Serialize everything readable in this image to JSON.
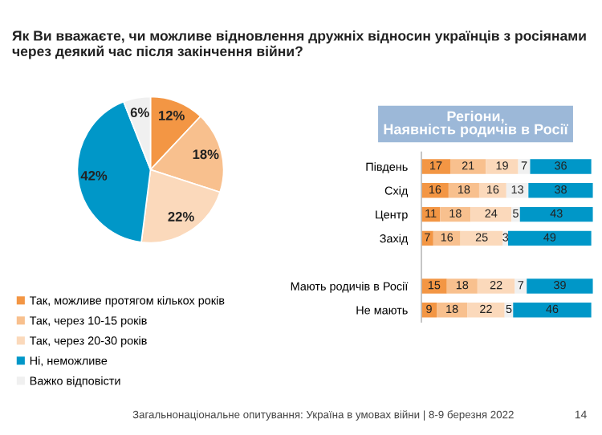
{
  "chart_data": [
    {
      "type": "pie",
      "title": "Як Ви вважаєте, чи можливе відновлення дружніх відносин українців з росіянами через деякий час після закінчення війни?",
      "categories": [
        "Так, можливе протягом кількох років",
        "Так, через 10-15 років",
        "Так, через 20-30 років",
        "Ні, неможливе",
        "Важко відповісти"
      ],
      "values": [
        12,
        18,
        22,
        42,
        6
      ],
      "colors": [
        "#f39644",
        "#f8c08e",
        "#fbd9bb",
        "#0097c8",
        "#f0f0f0"
      ],
      "value_labels": [
        "12%",
        "18%",
        "22%",
        "42%",
        "6%"
      ],
      "legend": "bottom",
      "annotations": [
        "Загальнонаціональне опитування: Україна в умовах війни | 8-9 березня 2022"
      ]
    },
    {
      "type": "bar",
      "orientation": "horizontal",
      "stacked": true,
      "title": "Регіони,\nНаявність родичів в Росії",
      "categories": [
        "Південь",
        "Схід",
        "Центр",
        "Захід",
        null,
        "Мають родичів в Росії",
        "Не мають"
      ],
      "series": [
        {
          "color": "#f39644",
          "values": [
            17,
            16,
            11,
            7,
            null,
            15,
            9
          ]
        },
        {
          "color": "#f8c08e",
          "values": [
            21,
            18,
            18,
            16,
            null,
            18,
            18
          ]
        },
        {
          "color": "#fbd9bb",
          "values": [
            19,
            16,
            24,
            25,
            null,
            22,
            22
          ]
        },
        {
          "color": "#f0f0f0",
          "values": [
            7,
            13,
            5,
            3,
            null,
            7,
            5
          ]
        },
        {
          "color": "#0097c8",
          "values": [
            36,
            38,
            43,
            49,
            null,
            39,
            46
          ]
        }
      ],
      "data_labels": true,
      "annotations": [
        "14"
      ]
    }
  ]
}
